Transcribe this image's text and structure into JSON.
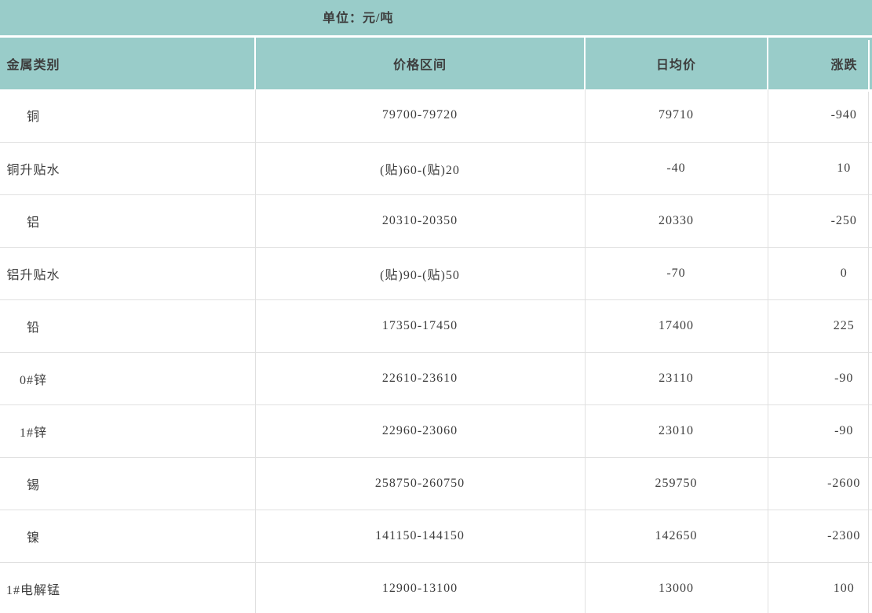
{
  "unit_bar": {
    "label": "单位：元/吨"
  },
  "table": {
    "columns": [
      "金属类别",
      "价格区间",
      "日均价",
      "涨跌"
    ],
    "rows": [
      {
        "metal": "铜",
        "range": "79700-79720",
        "avg": "79710",
        "change": "-940"
      },
      {
        "metal": "铜升贴水",
        "range": "(贴)60-(贴)20",
        "avg": "-40",
        "change": "10"
      },
      {
        "metal": "铝",
        "range": "20310-20350",
        "avg": "20330",
        "change": "-250"
      },
      {
        "metal": "铝升贴水",
        "range": "(贴)90-(贴)50",
        "avg": "-70",
        "change": "0"
      },
      {
        "metal": "铅",
        "range": "17350-17450",
        "avg": "17400",
        "change": "225"
      },
      {
        "metal": "0#锌",
        "range": "22610-23610",
        "avg": "23110",
        "change": "-90"
      },
      {
        "metal": "1#锌",
        "range": "22960-23060",
        "avg": "23010",
        "change": "-90"
      },
      {
        "metal": "锡",
        "range": "258750-260750",
        "avg": "259750",
        "change": "-2600"
      },
      {
        "metal": "镍",
        "range": "141150-144150",
        "avg": "142650",
        "change": "-2300"
      },
      {
        "metal": "1#电解锰",
        "range": "12900-13100",
        "avg": "13000",
        "change": "100"
      }
    ]
  },
  "colors": {
    "header_bg": "#99ccc9",
    "border": "#e0e0e0",
    "text": "#3d3d3d"
  }
}
